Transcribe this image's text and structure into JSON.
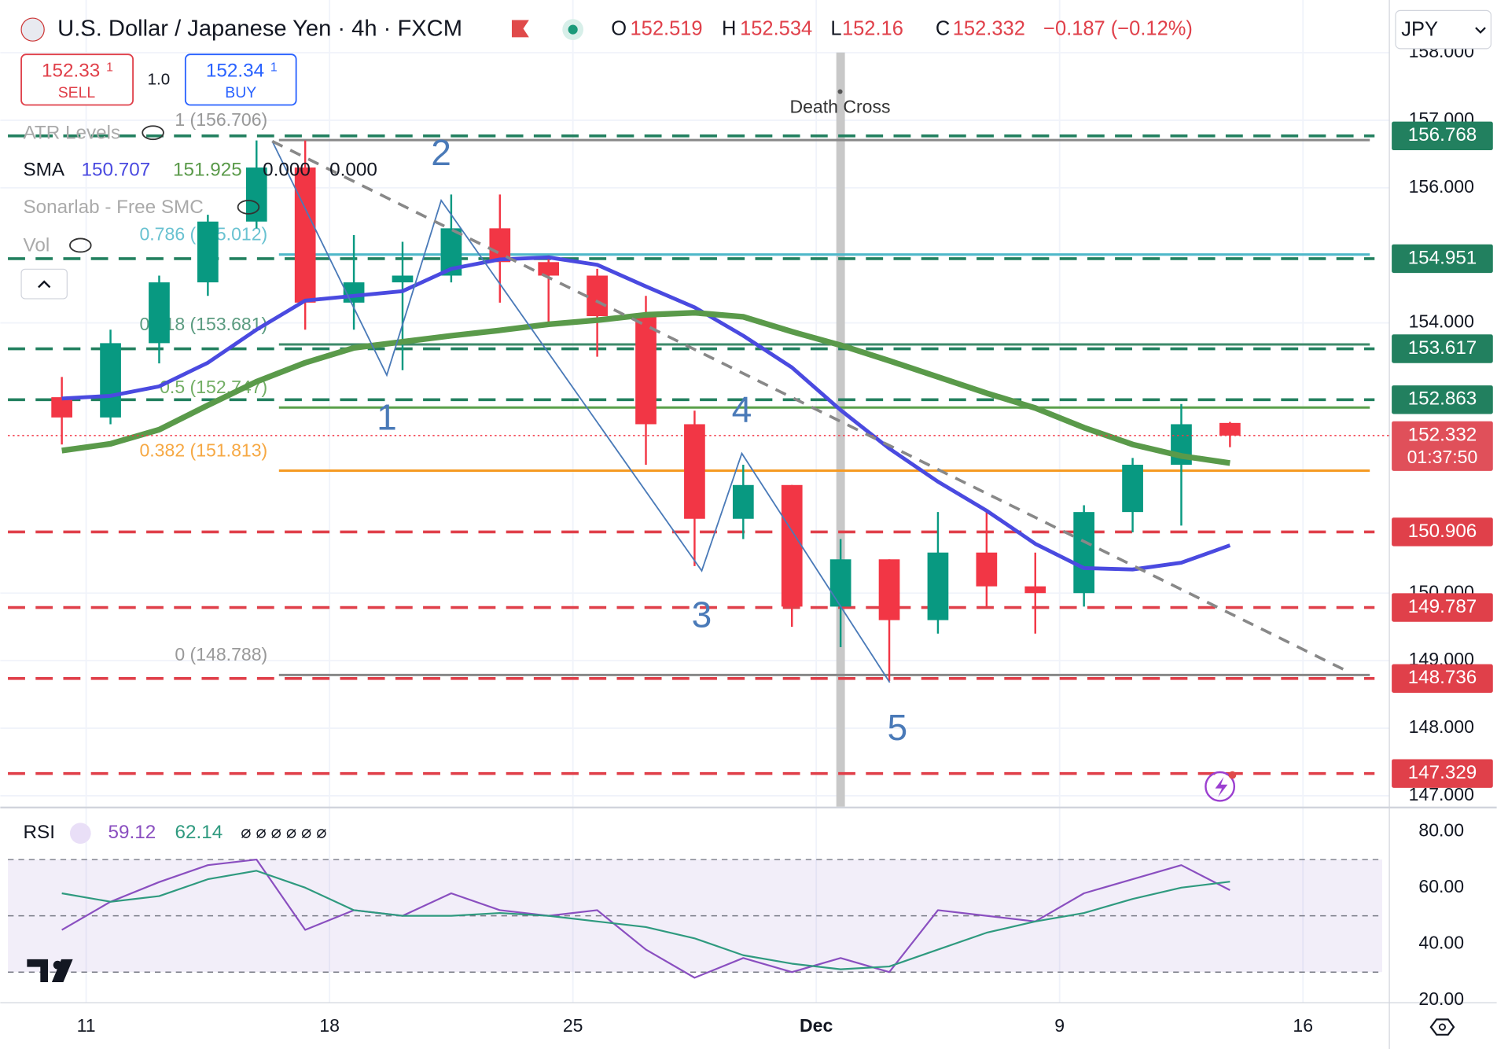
{
  "header": {
    "symbol": "U.S. Dollar / Japanese Yen · 4h · FXCM",
    "ohlc_labels": [
      "O",
      "H",
      "L",
      "C"
    ],
    "change": "−0.187 (−0.12%)",
    "currency": "JPY"
  },
  "trade": {
    "sell_price": "152.33",
    "sell_sup": "1",
    "sell": "SELL",
    "qty": "1.0",
    "buy_price": "152.34",
    "buy_sup": "1",
    "buy": "BUY"
  },
  "indicators": {
    "atr": "ATR Levels",
    "sma": "SMA",
    "sma_extra": [
      "0.000",
      "0.000"
    ],
    "smc": "Sonarlab - Free SMC",
    "vol": "Vol",
    "rsi": "RSI",
    "rsi_na": "⌀ ⌀ ⌀ ⌀ ⌀ ⌀"
  },
  "chart_data": {
    "type": "candlestick",
    "annotation": "Death Cross",
    "waves": [
      "1",
      "2",
      "3",
      "4",
      "5"
    ],
    "countdown": "01:37:50",
    "categories": [
      null,
      "11",
      null,
      null,
      null,
      null,
      "18",
      null,
      null,
      null,
      null,
      "25",
      null,
      null,
      null,
      null,
      "Dec",
      null,
      null,
      null,
      null,
      "9",
      null,
      null,
      null,
      null,
      "16",
      null
    ],
    "open": [
      152.9,
      152.6,
      153.7,
      154.6,
      155.5,
      156.3,
      154.3,
      154.6,
      154.7,
      155.4,
      154.9,
      154.7,
      154.1,
      152.5,
      151.1,
      151.6,
      149.8,
      150.5,
      149.6,
      150.6,
      150.1,
      150.0,
      151.2,
      151.9,
      152.519,
      null,
      null,
      null
    ],
    "high": [
      153.2,
      153.9,
      154.7,
      155.6,
      156.7,
      156.7,
      155.3,
      155.2,
      155.9,
      155.9,
      155.0,
      154.8,
      154.4,
      152.7,
      151.9,
      151.6,
      150.8,
      150.5,
      151.2,
      151.2,
      150.6,
      151.3,
      152.0,
      152.8,
      152.534,
      null,
      null,
      null
    ],
    "low": [
      152.2,
      152.5,
      153.4,
      154.4,
      155.4,
      153.9,
      153.9,
      153.3,
      154.6,
      154.3,
      154.0,
      153.5,
      151.9,
      150.4,
      150.8,
      149.5,
      149.2,
      148.7,
      149.4,
      149.8,
      149.4,
      149.8,
      150.9,
      151.0,
      152.16,
      null,
      null,
      null
    ],
    "close": [
      152.6,
      153.7,
      154.6,
      155.5,
      156.3,
      154.3,
      154.6,
      154.7,
      155.4,
      154.9,
      154.7,
      154.1,
      152.5,
      151.1,
      151.6,
      149.8,
      150.5,
      149.6,
      150.6,
      150.1,
      150.0,
      151.2,
      151.9,
      152.5,
      152.332,
      null,
      null,
      null
    ],
    "up_color": "#089981",
    "down_color": "#f23645",
    "sma": [
      {
        "color": "#4a4ae0",
        "values": [
          152.88,
          152.92,
          153.06,
          153.41,
          153.9,
          154.33,
          154.4,
          154.47,
          154.8,
          154.94,
          154.97,
          154.86,
          154.54,
          154.23,
          153.81,
          153.34,
          152.71,
          152.14,
          151.65,
          151.22,
          150.73,
          150.37,
          150.35,
          150.45,
          150.707,
          null,
          null,
          null
        ]
      },
      {
        "color": "#5a9a4a",
        "values": [
          152.11,
          152.21,
          152.42,
          152.78,
          153.13,
          153.41,
          153.63,
          153.72,
          153.81,
          153.89,
          153.98,
          154.04,
          154.12,
          154.15,
          154.09,
          153.87,
          153.67,
          153.44,
          153.2,
          152.96,
          152.74,
          152.45,
          152.2,
          152.03,
          151.925,
          null,
          null,
          null
        ]
      }
    ],
    "levels": [
      {
        "value": 156.768,
        "color": "#22805f"
      },
      {
        "value": 154.951,
        "color": "#22805f"
      },
      {
        "value": 153.617,
        "color": "#22805f"
      },
      {
        "value": 152.863,
        "color": "#22805f"
      },
      {
        "value": 150.906,
        "color": "#e0404a"
      },
      {
        "value": 149.787,
        "color": "#e0404a"
      },
      {
        "value": 148.736,
        "color": "#e0404a"
      },
      {
        "value": 147.329,
        "color": "#e0404a"
      }
    ],
    "fib": [
      {
        "value": 156.706,
        "label": "1 (156.706)",
        "color": "#888888"
      },
      {
        "value": 155.012,
        "label": "0.786 (155.012)",
        "color": "#4fb8c9"
      },
      {
        "value": 153.681,
        "label": "0.618 (153.681)",
        "color": "#3e8a6a"
      },
      {
        "value": 152.747,
        "label": "0.5 (152.747)",
        "color": "#5aa04a"
      },
      {
        "value": 151.813,
        "label": "0.382 (151.813)",
        "color": "#f59a23"
      },
      {
        "value": 148.788,
        "label": "0 (148.788)",
        "color": "#888888"
      }
    ],
    "ylim": [
      146.84,
      158.78
    ],
    "yticks": [
      {
        "value": 147,
        "label": "147.000"
      },
      {
        "value": 148,
        "label": "148.000"
      },
      {
        "value": 149,
        "label": "149.000"
      },
      {
        "value": 150,
        "label": "150.000"
      },
      {
        "value": 154,
        "label": "154.000"
      },
      {
        "value": 156,
        "label": "156.000"
      },
      {
        "value": 157,
        "label": "157.000"
      },
      {
        "value": 158,
        "label": "158.000"
      }
    ],
    "rsi": {
      "ylim": [
        19.3,
        87.8
      ],
      "yticks": [
        {
          "value": 80,
          "label": "80.00"
        },
        {
          "value": 60,
          "label": "60.00"
        },
        {
          "value": 40,
          "label": "40.00"
        },
        {
          "value": 20,
          "label": "20.00"
        }
      ],
      "bands": [
        70,
        50,
        30
      ],
      "series": [
        {
          "color": "#8a4fc0",
          "values": [
            45,
            55,
            62,
            68,
            70,
            45,
            52,
            50,
            58,
            52,
            50,
            52,
            38,
            28,
            35,
            30,
            35,
            30,
            52,
            50,
            48,
            58,
            63,
            68,
            59.12,
            null,
            null,
            null
          ]
        },
        {
          "color": "#2f9a7f",
          "values": [
            58,
            55,
            57,
            63,
            66,
            60,
            52,
            50,
            50,
            51,
            50,
            48,
            46,
            42,
            36,
            33,
            31,
            32,
            38,
            44,
            48,
            51,
            56,
            60,
            62.14,
            null,
            null,
            null
          ]
        }
      ]
    }
  }
}
